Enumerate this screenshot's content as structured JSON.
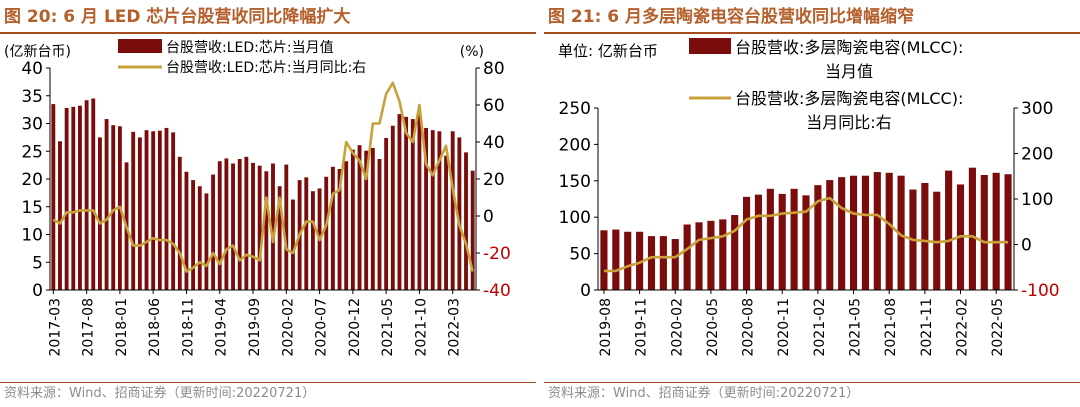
{
  "left": {
    "title": "图 20:  6 月 LED 芯片台股营收同比降幅扩大",
    "source": "资料来源：Wind、招商证券（更新时间:20220721）",
    "chart_data": {
      "type": "bar+line",
      "yleft_unit": "(亿新台币)",
      "yright_unit": "(%)",
      "yleft_range": [
        0,
        40
      ],
      "yleft_ticks": [
        0,
        5,
        10,
        15,
        20,
        25,
        30,
        35,
        40
      ],
      "yright_range": [
        -40,
        80
      ],
      "yright_ticks": [
        -40,
        -20,
        0,
        20,
        40,
        60,
        80
      ],
      "x_tick_labels": [
        "2017-03",
        "2017-08",
        "2018-01",
        "2018-06",
        "2018-11",
        "2019-04",
        "2019-09",
        "2020-02",
        "2020-07",
        "2020-12",
        "2021-05",
        "2021-10",
        "2022-03"
      ],
      "x_tick_indices": [
        0,
        5,
        10,
        15,
        20,
        25,
        30,
        35,
        40,
        45,
        50,
        55,
        60
      ],
      "series": [
        {
          "name": "台股营收:LED:芯片:当月值",
          "kind": "bar",
          "axis": "left",
          "color": "#7a0c0c",
          "values": [
            33.5,
            26.8,
            32.8,
            33,
            33.2,
            34.2,
            34.5,
            27.5,
            30.8,
            29.7,
            29.5,
            23,
            28.5,
            27.5,
            28.8,
            28.6,
            28.7,
            29.2,
            28.4,
            24,
            21.3,
            19.8,
            18.7,
            17.4,
            20.8,
            23.2,
            23.7,
            22.8,
            23.6,
            24,
            22.9,
            22.4,
            21.4,
            22.8,
            18.7,
            22.6,
            16.3,
            19.8,
            20.3,
            17.8,
            18.3,
            20.4,
            22.2,
            21.8,
            23.2,
            25.3,
            26.1,
            25.1,
            25.6,
            23.6,
            27.4,
            29.6,
            31.7,
            31.2,
            30.8,
            31.6,
            29.2,
            28.8,
            28.6,
            24.2,
            28.6,
            27.5,
            24.8,
            21.5
          ]
        },
        {
          "name": "台股营收:LED:芯片:当月同比:右",
          "kind": "line",
          "axis": "right",
          "color": "#c9a13b",
          "values": [
            -2,
            -4,
            2,
            2,
            3,
            3,
            3,
            -4,
            -2,
            3,
            5,
            -6,
            -16,
            -16,
            -14,
            -12,
            -13,
            -13,
            -15,
            -20,
            -30,
            -28,
            -25,
            -27,
            -20,
            -26,
            -18,
            -16,
            -24,
            -21,
            -22,
            -24,
            10,
            -14,
            10,
            -18,
            -20,
            -10,
            -3,
            -3,
            -13,
            -5,
            12,
            14,
            40,
            34,
            30,
            20,
            50,
            50,
            66,
            72,
            62,
            45,
            40,
            60,
            28,
            22,
            30,
            38,
            15,
            -5,
            -15,
            -30
          ]
        }
      ]
    }
  },
  "right": {
    "title": "图 21:  6 月多层陶瓷电容台股营收同比增幅缩窄",
    "source": "资料来源：Wind、招商证券（更新时间:20220721）",
    "chart_data": {
      "type": "bar+line",
      "yleft_unit": "单位:  亿新台币",
      "yleft_range": [
        0,
        250
      ],
      "yleft_ticks": [
        0,
        50,
        100,
        150,
        200,
        250
      ],
      "yright_range": [
        -100,
        300
      ],
      "yright_ticks": [
        -100,
        0,
        100,
        200,
        300
      ],
      "x_tick_labels": [
        "2019-08",
        "2019-11",
        "2020-02",
        "2020-05",
        "2020-08",
        "2020-11",
        "2021-02",
        "2021-05",
        "2021-08",
        "2021-11",
        "2022-02",
        "2022-05"
      ],
      "x_tick_indices": [
        0,
        3,
        6,
        9,
        12,
        15,
        18,
        21,
        24,
        27,
        30,
        33
      ],
      "series": [
        {
          "name": "台股营收:多层陶瓷电容(MLCC):当月值",
          "kind": "bar",
          "axis": "left",
          "color": "#7a0c0c",
          "values": [
            82,
            83,
            80,
            80,
            74,
            74,
            70,
            90,
            93,
            95,
            97,
            103,
            128,
            131,
            139,
            132,
            139,
            130,
            144,
            151,
            155,
            157,
            157,
            162,
            161,
            157,
            138,
            147,
            135,
            164,
            145,
            168,
            158,
            161,
            159
          ]
        },
        {
          "name": "台股营收:多层陶瓷电容(MLCC):当月同比:右",
          "kind": "line",
          "axis": "right",
          "color": "#c9a13b",
          "values": [
            -58,
            -58,
            -48,
            -40,
            -28,
            -28,
            -28,
            -10,
            10,
            14,
            18,
            30,
            55,
            63,
            63,
            68,
            70,
            72,
            95,
            102,
            80,
            68,
            65,
            65,
            45,
            20,
            10,
            8,
            5,
            8,
            18,
            18,
            5,
            5,
            5
          ]
        }
      ],
      "legend_labels": {
        "bar_line1": "台股营收:多层陶瓷电容(MLCC):",
        "bar_line2": "当月值",
        "line_line1": "台股营收:多层陶瓷电容(MLCC):",
        "line_line2": "当月同比:右"
      }
    }
  }
}
